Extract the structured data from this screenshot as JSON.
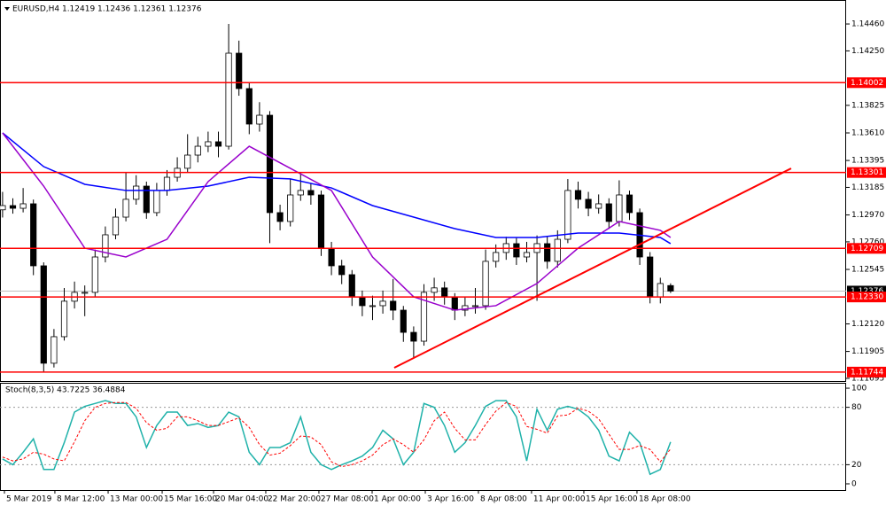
{
  "chart_data": [
    {
      "type": "candlestick",
      "title": "EURUSD,H4  1.12419 1.12436 1.12361 1.12376",
      "xlim": [
        -0.25,
        82.08
      ],
      "ylim": [
        1.11674,
        1.14647
      ],
      "xticks": [
        {
          "value": 0.18,
          "label": "5 Mar 2019"
        },
        {
          "value": 5.09,
          "label": "8 Mar 12:00"
        },
        {
          "value": 10.27,
          "label": "13 Mar 00:00"
        },
        {
          "value": 15.53,
          "label": "15 Mar 16:00"
        },
        {
          "value": 20.53,
          "label": "20 Mar 04:00"
        },
        {
          "value": 25.61,
          "label": "22 Mar 20:00"
        },
        {
          "value": 30.78,
          "label": "27 Mar 08:00"
        },
        {
          "value": 35.96,
          "label": "1 Apr 00:00"
        },
        {
          "value": 41.13,
          "label": "3 Apr 16:00"
        },
        {
          "value": 46.3,
          "label": "8 Apr 08:00"
        },
        {
          "value": 51.47,
          "label": "11 Apr 00:00"
        },
        {
          "value": 56.56,
          "label": "15 Apr 16:00"
        },
        {
          "value": 61.73,
          "label": "18 Apr 08:00"
        }
      ],
      "yticks": [
        {
          "value": 1.1446,
          "label": "1.14460"
        },
        {
          "value": 1.1425,
          "label": "1.14250"
        },
        1.13825,
        {
          "value": 1.1361,
          "label": "1.13610"
        },
        1.13395,
        1.13185,
        {
          "value": 1.1297,
          "label": "1.12970"
        },
        {
          "value": 1.1276,
          "label": "1.12760"
        },
        1.12545,
        {
          "value": 1.1212,
          "label": "1.12120"
        },
        1.11905,
        1.11695
      ],
      "open": [
        1.1301,
        1.13043,
        1.13022,
        1.13057,
        1.12573,
        1.11813,
        1.1202,
        1.12297,
        1.12366,
        1.12366,
        1.12642,
        1.12815,
        1.12953,
        1.13092,
        1.13195,
        1.12988,
        1.13161,
        1.13264,
        1.13334,
        1.13437,
        1.13506,
        1.13541,
        1.13506,
        1.14232,
        1.13956,
        1.13679,
        1.13748,
        1.12988,
        1.12919,
        1.13126,
        1.13161,
        1.13126,
        1.12711,
        1.12573,
        1.12504,
        1.12331,
        1.12262,
        1.12262,
        1.12297,
        1.12227,
        1.12054,
        1.11985,
        1.12366,
        1.12401,
        1.12331,
        1.12227,
        1.12262,
        1.12262,
        1.12608,
        1.12677,
        1.12746,
        1.12642,
        1.12677,
        1.12746,
        1.12608,
        1.1278,
        1.13161,
        1.13092,
        1.13022,
        1.13057,
        1.12919,
        1.13126,
        1.12988,
        1.12642,
        1.12331,
        1.12419
      ],
      "high": [
        1.1315,
        1.131,
        1.1318,
        1.1309,
        1.126,
        1.1208,
        1.124,
        1.1245,
        1.1242,
        1.127,
        1.1288,
        1.1302,
        1.133,
        1.1328,
        1.1323,
        1.1322,
        1.1332,
        1.1342,
        1.136,
        1.1358,
        1.1362,
        1.1362,
        1.1446,
        1.1433,
        1.14,
        1.1385,
        1.1378,
        1.1305,
        1.1325,
        1.133,
        1.1322,
        1.1316,
        1.1276,
        1.1262,
        1.1254,
        1.1238,
        1.1234,
        1.1238,
        1.1247,
        1.1226,
        1.121,
        1.1243,
        1.1248,
        1.1245,
        1.1236,
        1.1233,
        1.124,
        1.127,
        1.1274,
        1.128,
        1.1279,
        1.1276,
        1.1281,
        1.128,
        1.1285,
        1.1325,
        1.1323,
        1.1315,
        1.1313,
        1.131,
        1.1324,
        1.1316,
        1.1302,
        1.1268,
        1.1248,
        1.12436
      ],
      "low": [
        1.1295,
        1.1298,
        1.1299,
        1.125,
        1.11744,
        1.1178,
        1.1199,
        1.1224,
        1.1218,
        1.1233,
        1.126,
        1.1278,
        1.1292,
        1.1305,
        1.1294,
        1.1296,
        1.1312,
        1.1323,
        1.133,
        1.1338,
        1.1346,
        1.1342,
        1.1348,
        1.139,
        1.136,
        1.1362,
        1.1275,
        1.1285,
        1.1288,
        1.1308,
        1.1305,
        1.1265,
        1.125,
        1.1243,
        1.1226,
        1.1218,
        1.1215,
        1.122,
        1.1215,
        1.1198,
        1.1185,
        1.1195,
        1.123,
        1.1227,
        1.1215,
        1.1218,
        1.122,
        1.1223,
        1.1256,
        1.1262,
        1.1258,
        1.126,
        1.123,
        1.1255,
        1.1256,
        1.1275,
        1.1302,
        1.1296,
        1.1298,
        1.1286,
        1.1288,
        1.1293,
        1.1258,
        1.1228,
        1.1228,
        1.12361
      ],
      "close": [
        1.13043,
        1.13022,
        1.13057,
        1.12573,
        1.11813,
        1.1202,
        1.12297,
        1.12366,
        1.12366,
        1.12642,
        1.12815,
        1.12953,
        1.13092,
        1.13195,
        1.12988,
        1.13161,
        1.13264,
        1.13334,
        1.13437,
        1.13506,
        1.13541,
        1.13506,
        1.14232,
        1.13956,
        1.13679,
        1.13748,
        1.12988,
        1.12919,
        1.13126,
        1.13161,
        1.13126,
        1.12711,
        1.12573,
        1.12504,
        1.12331,
        1.12262,
        1.12262,
        1.12297,
        1.12227,
        1.12054,
        1.11985,
        1.12366,
        1.12401,
        1.12331,
        1.12227,
        1.12262,
        1.12262,
        1.12608,
        1.12677,
        1.12746,
        1.12642,
        1.12677,
        1.12746,
        1.12608,
        1.1278,
        1.13161,
        1.13092,
        1.13022,
        1.13057,
        1.12919,
        1.13126,
        1.12988,
        1.12642,
        1.12331,
        1.12435,
        1.12376
      ],
      "series": [
        {
          "color": "#0000ff",
          "x": [
            0,
            4,
            8,
            12,
            16,
            20,
            24,
            28,
            32,
            36,
            40,
            44,
            48,
            52,
            56,
            60,
            64,
            65
          ],
          "values": [
            1.1361,
            1.13347,
            1.13209,
            1.13161,
            1.13161,
            1.13195,
            1.13264,
            1.13251,
            1.13181,
            1.13043,
            1.12953,
            1.12863,
            1.12794,
            1.12794,
            1.12829,
            1.12829,
            1.12794,
            1.12746
          ]
        },
        {
          "color": "#9900cc",
          "x": [
            0,
            4,
            8,
            12,
            16,
            20,
            24,
            28,
            32,
            36,
            40,
            44,
            48,
            52,
            56,
            60,
            64,
            65
          ],
          "values": [
            1.1361,
            1.13195,
            1.12711,
            1.12642,
            1.1278,
            1.1323,
            1.13506,
            1.13334,
            1.13161,
            1.12642,
            1.12331,
            1.12227,
            1.12262,
            1.12435,
            1.12711,
            1.12919,
            1.1285,
            1.12794
          ]
        }
      ],
      "levels": [
        1.14002,
        1.13301,
        1.12709,
        {
          "value": 1.1233,
          "label": "1.12330"
        },
        1.11744
      ],
      "level_color": "#ff0000",
      "last_price": 1.12376,
      "trendline": {
        "color": "#ff0000",
        "x": [
          38.11,
          76.73
        ],
        "values": [
          1.11778,
          1.13333
        ]
      }
    },
    {
      "type": "line",
      "title": "Stoch(8,3,5) 43.7225 36.4884",
      "xlim": [
        -0.25,
        82.08
      ],
      "ylim": [
        -6.5,
        105.6
      ],
      "yticks": [
        0,
        20,
        80,
        100
      ],
      "dotted_grid": [
        20,
        80
      ],
      "series": [
        {
          "color": "#20b2aa",
          "values": [
            26,
            20,
            33,
            47,
            15,
            15,
            43,
            75,
            81,
            84,
            87,
            84,
            84,
            70,
            38,
            61,
            75,
            75,
            61,
            63,
            59,
            61,
            75,
            70,
            33,
            20,
            38,
            38,
            43,
            70,
            33,
            20,
            15,
            20,
            24,
            29,
            38,
            56,
            47,
            20,
            33,
            84,
            80,
            61,
            33,
            43,
            61,
            81,
            87,
            87,
            70,
            24,
            78,
            56,
            78,
            81,
            78,
            70,
            56,
            29,
            24,
            54,
            43,
            10,
            15,
            43.7225
          ]
        },
        {
          "color": "#ff0000",
          "style": "dashed",
          "values": [
            28,
            24,
            26,
            33,
            31,
            26,
            24,
            44,
            66,
            80,
            84,
            85,
            85,
            79,
            64,
            56,
            58,
            70,
            70,
            66,
            61,
            61,
            65,
            69,
            59,
            41,
            30,
            32,
            40,
            50,
            49,
            41,
            23,
            18,
            20,
            24,
            30,
            41,
            47,
            41,
            33,
            46,
            66,
            75,
            58,
            46,
            46,
            62,
            76,
            85,
            81,
            60,
            57,
            53,
            71,
            72,
            79,
            76,
            68,
            52,
            36,
            36,
            40,
            36,
            23,
            36.4884
          ]
        }
      ]
    }
  ]
}
